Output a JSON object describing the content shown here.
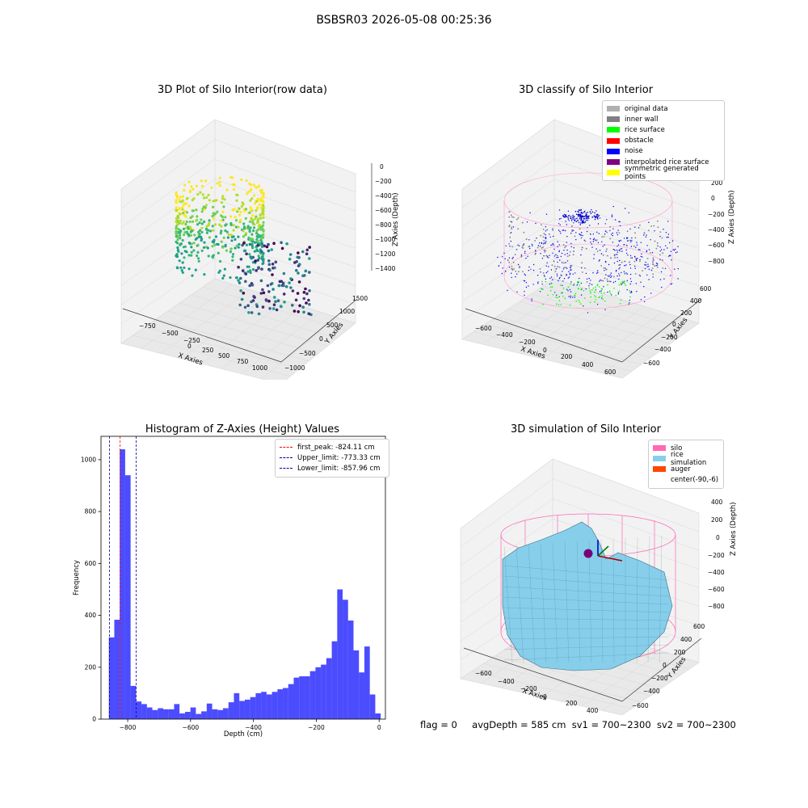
{
  "suptitle": "BSBSR03 2026-05-08 00:25:36",
  "panels": {
    "raw": {
      "title": "3D Plot of Silo Interior(row data)",
      "xlabel": "X Axies",
      "ylabel": "Y Axies",
      "zlabel": "Z Axies (Depth)",
      "xticks": [
        "−750",
        "−500",
        "−250",
        "0",
        "250",
        "500",
        "750",
        "1000"
      ],
      "yticks": [
        "−1000",
        "−500",
        "0",
        "500",
        "1000",
        "1500"
      ],
      "zticks": [
        "0",
        "−200",
        "−400",
        "−600",
        "−800",
        "−1000",
        "−1200",
        "−1400"
      ]
    },
    "classify": {
      "title": "3D classify of Silo Interior",
      "xlabel": "X Axies",
      "ylabel": "Y Axies",
      "zlabel": "Z Axies (Depth)",
      "xticks": [
        "−600",
        "−400",
        "−200",
        "0",
        "200",
        "400",
        "600"
      ],
      "yticks": [
        "−600",
        "−400",
        "−200",
        "0",
        "200",
        "400",
        "600"
      ],
      "zticks": [
        "200",
        "0",
        "−200",
        "−400",
        "−600",
        "−800"
      ],
      "legend": [
        {
          "label": "original data",
          "color": "#b0b0b0"
        },
        {
          "label": "inner wall",
          "color": "#808080"
        },
        {
          "label": "rice surface",
          "color": "#00ff00"
        },
        {
          "label": "obstacle",
          "color": "#ff0000"
        },
        {
          "label": "noise",
          "color": "#0000ff"
        },
        {
          "label": "interpolated rice surface",
          "color": "#800080"
        },
        {
          "label": "symmetric generated points",
          "color": "#ffff00"
        }
      ]
    },
    "simulation": {
      "title": "3D simulation of Silo Interior",
      "xlabel": "X Axies",
      "ylabel": "Y Axies",
      "zlabel": "Z Axies (Depth)",
      "xticks": [
        "−600",
        "−400",
        "−200",
        "0",
        "200",
        "400"
      ],
      "yticks": [
        "−600",
        "−400",
        "−200",
        "0",
        "200",
        "400",
        "600"
      ],
      "zticks": [
        "400",
        "200",
        "0",
        "−200",
        "−400",
        "−600",
        "−800"
      ],
      "legend": [
        {
          "label": "silo",
          "color": "#ff69b4"
        },
        {
          "label": "rice simulation",
          "color": "#87ceeb"
        },
        {
          "label": "auger",
          "color": "#ff4500"
        },
        {
          "label": "center(-90,-6)",
          "color": ""
        }
      ]
    }
  },
  "status": {
    "flag": "flag = 0",
    "avg_depth": "avgDepth = 585 cm",
    "sv1": "sv1 = 700~2300",
    "sv2": "sv2 = 700~2300"
  },
  "chart_data": [
    {
      "type": "bar",
      "title": "Histogram of Z-Axies (Height) Values",
      "xlabel": "Depth (cm)",
      "ylabel": "Frequency",
      "xlim": [
        -885,
        20
      ],
      "ylim": [
        0,
        1090
      ],
      "xticks": [
        -800,
        -600,
        -400,
        -200,
        0
      ],
      "yticks": [
        0,
        200,
        400,
        600,
        800,
        1000
      ],
      "bin_start": -860,
      "bin_width": 17.3,
      "color": "#0000ff",
      "values": [
        315,
        383,
        1040,
        940,
        128,
        68,
        58,
        45,
        35,
        42,
        38,
        38,
        58,
        22,
        28,
        45,
        20,
        30,
        60,
        38,
        35,
        42,
        65,
        100,
        70,
        75,
        85,
        100,
        105,
        95,
        105,
        115,
        120,
        135,
        160,
        165,
        165,
        185,
        200,
        210,
        235,
        300,
        500,
        460,
        380,
        265,
        180,
        280,
        95,
        22
      ],
      "lines": [
        {
          "name": "first_peak: -824.11 cm",
          "x": -824.11,
          "color": "#ff0000"
        },
        {
          "name": "Upper_limit: -773.33 cm",
          "x": -773.33,
          "color": "#0000aa"
        },
        {
          "name": "Lower_limit: -857.96 cm",
          "x": -857.96,
          "color": "#0000aa"
        }
      ],
      "legend_position": "upper right"
    }
  ]
}
